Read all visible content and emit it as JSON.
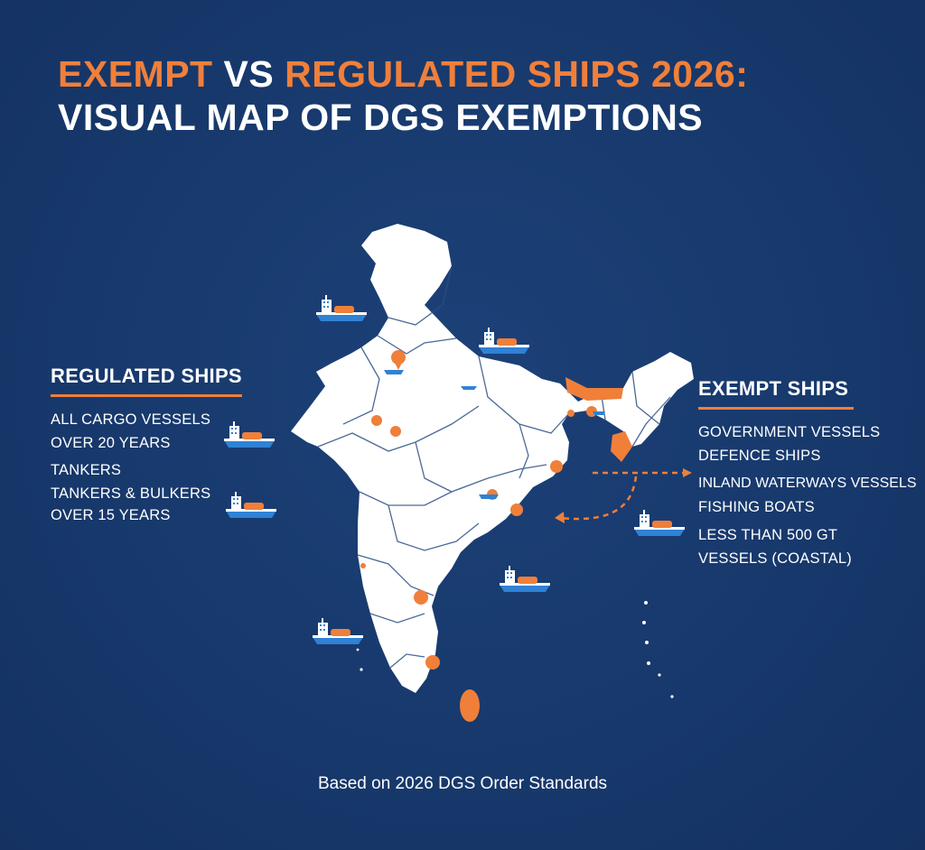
{
  "title": {
    "word1": "EXEMPT",
    "word2": "VS",
    "word3": "REGULATED SHIPS 2026:",
    "line2": "VISUAL MAP OF DGS EXEMPTIONS"
  },
  "regulated": {
    "heading": "REGULATED SHIPS",
    "items": [
      "ALL CARGO VESSELS",
      "OVER 20 YEARS",
      "TANKERS",
      "TANKERS & BULKERS",
      "OVER 15 YEARS"
    ]
  },
  "exempt": {
    "heading": "EXEMPT SHIPS",
    "items": [
      "GOVERNMENT VESSELS",
      "DEFENCE SHIPS",
      "INLAND WATERWAYS VESSELS",
      "FISHING BOATS",
      "LESS THAN 500 GT",
      "VESSELS (COASTAL)"
    ]
  },
  "footer": "Based on 2026 DGS Order Standards",
  "colors": {
    "background": "#17386b",
    "accent": "#f07f3a",
    "land": "#ffffff",
    "ship_hull": "#2f82d4"
  },
  "icons": {
    "ship": "cargo-ship-icon",
    "marker": "location-pin-icon"
  }
}
